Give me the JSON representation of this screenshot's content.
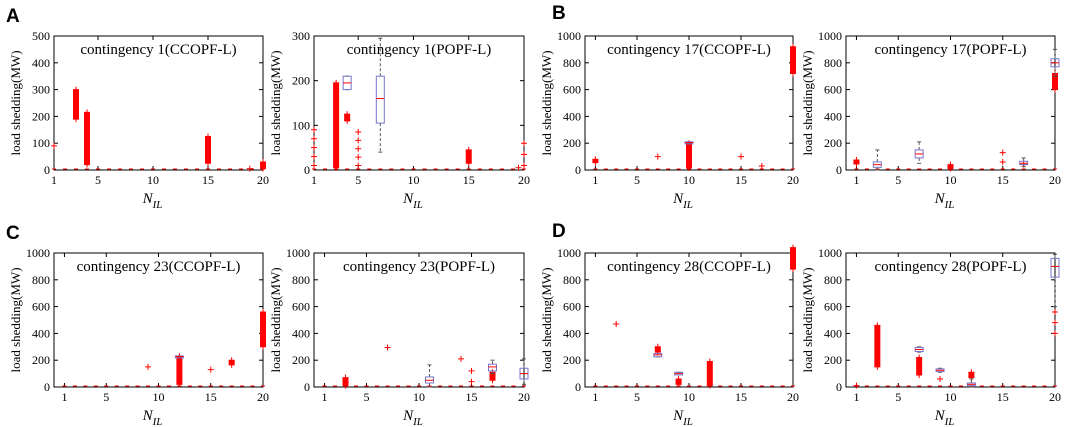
{
  "figure": {
    "y_axis_label": "load shedding(MW)",
    "x_axis_label_main": "N",
    "x_axis_label_sub": "IL",
    "colors": {
      "outlier": "#ff0000",
      "box": "#7777cc",
      "frame": "#000000",
      "baseline_marker": "#ff0000"
    }
  },
  "chart_data": [
    {
      "panel": "A",
      "type": "scatter",
      "title": "contingency 1(CCOPF-L)",
      "ylim": [
        0,
        500
      ],
      "yticks": [
        0,
        100,
        200,
        300,
        400,
        500
      ],
      "xlim": [
        1,
        20
      ],
      "xticks": [
        1,
        5,
        10,
        15,
        20
      ],
      "baseline_x": [
        1,
        2,
        3,
        4,
        5,
        6,
        7,
        8,
        9,
        10,
        11,
        12,
        13,
        14,
        15,
        16,
        17,
        18,
        19,
        20
      ],
      "clusters": [
        {
          "x": 1,
          "low": 90,
          "high": 92,
          "dense": false
        },
        {
          "x": 3,
          "low": 190,
          "high": 300,
          "dense": true
        },
        {
          "x": 4,
          "low": 20,
          "high": 215,
          "dense": true
        },
        {
          "x": 15,
          "low": 25,
          "high": 125,
          "dense": true
        },
        {
          "x": 18.8,
          "low": 5,
          "high": 5,
          "dense": false
        },
        {
          "x": 20,
          "low": 5,
          "high": 30,
          "dense": true
        }
      ],
      "boxes": []
    },
    {
      "panel": "",
      "type": "box",
      "title": "contingency 1(POPF-L)",
      "ylim": [
        0,
        300
      ],
      "yticks": [
        0,
        100,
        200,
        300
      ],
      "xlim": [
        1,
        20
      ],
      "xticks": [
        1,
        5,
        10,
        15,
        20
      ],
      "baseline_x": [
        1,
        2,
        3,
        4,
        5,
        6,
        7,
        8,
        9,
        10,
        11,
        12,
        13,
        14,
        15,
        16,
        17,
        18,
        19,
        20
      ],
      "clusters": [
        {
          "x": 1,
          "low": 10,
          "high": 90,
          "dense": false
        },
        {
          "x": 3,
          "low": 5,
          "high": 195,
          "dense": true
        },
        {
          "x": 4,
          "low": 110,
          "high": 125,
          "dense": true
        },
        {
          "x": 5,
          "low": 10,
          "high": 85,
          "dense": false
        },
        {
          "x": 15,
          "low": 15,
          "high": 45,
          "dense": true
        },
        {
          "x": 19.5,
          "low": 5,
          "high": 8,
          "dense": false
        },
        {
          "x": 20,
          "low": 10,
          "high": 60,
          "dense": false
        }
      ],
      "boxes": [
        {
          "x": 4,
          "q1": 180,
          "median": 195,
          "q3": 210,
          "whisker_low": 180,
          "whisker_high": 210
        },
        {
          "x": 7,
          "q1": 105,
          "median": 160,
          "q3": 210,
          "whisker_low": 40,
          "whisker_high": 295
        }
      ]
    },
    {
      "panel": "B",
      "type": "scatter",
      "title": "contingency 17(CCOPF-L)",
      "ylim": [
        0,
        1000
      ],
      "yticks": [
        0,
        200,
        400,
        600,
        800,
        1000
      ],
      "xlim": [
        0,
        20
      ],
      "xticks": [
        1,
        5,
        10,
        15,
        20
      ],
      "baseline_x": [
        1,
        2,
        3,
        4,
        5,
        6,
        7,
        8,
        9,
        10,
        11,
        12,
        13,
        14,
        15,
        16,
        17,
        18,
        19,
        20
      ],
      "clusters": [
        {
          "x": 1,
          "low": 55,
          "high": 80,
          "dense": true
        },
        {
          "x": 7,
          "low": 100,
          "high": 100,
          "dense": false
        },
        {
          "x": 10,
          "low": 15,
          "high": 200,
          "dense": true
        },
        {
          "x": 15,
          "low": 100,
          "high": 120,
          "dense": false
        },
        {
          "x": 17,
          "low": 30,
          "high": 35,
          "dense": false
        },
        {
          "x": 20,
          "low": 720,
          "high": 920,
          "dense": true
        }
      ],
      "boxes": [
        {
          "x": 10,
          "q1": 200,
          "median": 205,
          "q3": 210,
          "whisker_low": 200,
          "whisker_high": 210
        }
      ]
    },
    {
      "panel": "",
      "type": "box",
      "title": "contingency 17(POPF-L)",
      "ylim": [
        0,
        1000
      ],
      "yticks": [
        0,
        200,
        400,
        600,
        800,
        1000
      ],
      "xlim": [
        0,
        20
      ],
      "xticks": [
        1,
        5,
        10,
        15,
        20
      ],
      "baseline_x": [
        1,
        2,
        3,
        4,
        5,
        6,
        7,
        8,
        9,
        10,
        11,
        12,
        13,
        14,
        15,
        16,
        17,
        18,
        19,
        20
      ],
      "clusters": [
        {
          "x": 1,
          "low": 45,
          "high": 75,
          "dense": true
        },
        {
          "x": 10,
          "low": 10,
          "high": 40,
          "dense": true
        },
        {
          "x": 15,
          "low": 60,
          "high": 130,
          "dense": false
        },
        {
          "x": 17,
          "low": 40,
          "high": 55,
          "dense": false
        },
        {
          "x": 20,
          "low": 600,
          "high": 720,
          "dense": true
        }
      ],
      "boxes": [
        {
          "x": 3,
          "q1": 20,
          "median": 40,
          "q3": 60,
          "whisker_low": 0,
          "whisker_high": 150
        },
        {
          "x": 7,
          "q1": 90,
          "median": 120,
          "q3": 150,
          "whisker_low": 50,
          "whisker_high": 210
        },
        {
          "x": 17,
          "q1": 40,
          "median": 50,
          "q3": 65,
          "whisker_low": 25,
          "whisker_high": 90
        },
        {
          "x": 20,
          "q1": 770,
          "median": 800,
          "q3": 830,
          "whisker_low": 700,
          "whisker_high": 900
        }
      ]
    },
    {
      "panel": "C",
      "type": "scatter",
      "title": "contingency 23(CCOPF-L)",
      "ylim": [
        0,
        1000
      ],
      "yticks": [
        0,
        200,
        400,
        600,
        800,
        1000
      ],
      "xlim": [
        0,
        20
      ],
      "xticks": [
        1,
        5,
        10,
        15,
        20
      ],
      "baseline_x": [
        1,
        2,
        3,
        4,
        5,
        6,
        7,
        8,
        9,
        10,
        11,
        12,
        13,
        14,
        15,
        16,
        17,
        18,
        19,
        20
      ],
      "clusters": [
        {
          "x": 9,
          "low": 150,
          "high": 150,
          "dense": false
        },
        {
          "x": 12,
          "low": 20,
          "high": 230,
          "dense": true
        },
        {
          "x": 15,
          "low": 130,
          "high": 130,
          "dense": false
        },
        {
          "x": 17,
          "low": 165,
          "high": 200,
          "dense": true
        },
        {
          "x": 20,
          "low": 300,
          "high": 560,
          "dense": true
        }
      ],
      "boxes": [
        {
          "x": 12,
          "q1": 225,
          "median": 228,
          "q3": 232,
          "whisker_low": 225,
          "whisker_high": 232
        }
      ]
    },
    {
      "panel": "",
      "type": "box",
      "title": "contingency 23(POPF-L)",
      "ylim": [
        0,
        1000
      ],
      "yticks": [
        0,
        200,
        400,
        600,
        800,
        1000
      ],
      "xlim": [
        0,
        20
      ],
      "xticks": [
        1,
        5,
        10,
        15,
        20
      ],
      "baseline_x": [
        1,
        2,
        3,
        4,
        5,
        6,
        7,
        8,
        9,
        10,
        11,
        12,
        13,
        14,
        15,
        16,
        17,
        18,
        19,
        20
      ],
      "clusters": [
        {
          "x": 3,
          "low": 10,
          "high": 70,
          "dense": true
        },
        {
          "x": 7,
          "low": 295,
          "high": 295,
          "dense": false
        },
        {
          "x": 14,
          "low": 210,
          "high": 210,
          "dense": false
        },
        {
          "x": 15,
          "low": 40,
          "high": 120,
          "dense": false
        },
        {
          "x": 17,
          "low": 50,
          "high": 110,
          "dense": true
        }
      ],
      "boxes": [
        {
          "x": 11,
          "q1": 30,
          "median": 50,
          "q3": 75,
          "whisker_low": 0,
          "whisker_high": 165
        },
        {
          "x": 17,
          "q1": 120,
          "median": 150,
          "q3": 170,
          "whisker_low": 100,
          "whisker_high": 200
        },
        {
          "x": 20,
          "q1": 60,
          "median": 100,
          "q3": 140,
          "whisker_low": 20,
          "whisker_high": 210
        }
      ]
    },
    {
      "panel": "D",
      "type": "scatter",
      "title": "contingency 28(CCOPF-L)",
      "ylim": [
        0,
        1000
      ],
      "yticks": [
        0,
        200,
        400,
        600,
        800,
        1000
      ],
      "xlim": [
        0,
        20
      ],
      "xticks": [
        1,
        5,
        10,
        15,
        20
      ],
      "baseline_x": [
        1,
        2,
        3,
        4,
        5,
        6,
        7,
        8,
        9,
        10,
        11,
        12,
        13,
        14,
        15,
        16,
        17,
        18,
        19,
        20
      ],
      "clusters": [
        {
          "x": 3,
          "low": 470,
          "high": 470,
          "dense": false
        },
        {
          "x": 7,
          "low": 260,
          "high": 300,
          "dense": true
        },
        {
          "x": 9,
          "low": 20,
          "high": 60,
          "dense": true
        },
        {
          "x": 12,
          "low": 10,
          "high": 190,
          "dense": true
        },
        {
          "x": 20,
          "low": 880,
          "high": 1040,
          "dense": true
        }
      ],
      "boxes": [
        {
          "x": 7,
          "q1": 225,
          "median": 240,
          "q3": 250,
          "whisker_low": 225,
          "whisker_high": 250
        },
        {
          "x": 9,
          "q1": 90,
          "median": 100,
          "q3": 110,
          "whisker_low": 90,
          "whisker_high": 110
        }
      ]
    },
    {
      "panel": "",
      "type": "box",
      "title": "contingency 28(POPF-L)",
      "ylim": [
        0,
        1000
      ],
      "yticks": [
        0,
        200,
        400,
        600,
        800,
        1000
      ],
      "xlim": [
        0,
        20
      ],
      "xticks": [
        1,
        5,
        10,
        15,
        20
      ],
      "baseline_x": [
        1,
        2,
        3,
        4,
        5,
        6,
        7,
        8,
        9,
        10,
        11,
        12,
        13,
        14,
        15,
        16,
        17,
        18,
        19,
        20
      ],
      "clusters": [
        {
          "x": 1,
          "low": 10,
          "high": 30,
          "dense": false
        },
        {
          "x": 3,
          "low": 150,
          "high": 460,
          "dense": true
        },
        {
          "x": 7,
          "low": 90,
          "high": 220,
          "dense": true
        },
        {
          "x": 9,
          "low": 60,
          "high": 90,
          "dense": false
        },
        {
          "x": 12,
          "low": 70,
          "high": 110,
          "dense": true
        },
        {
          "x": 20,
          "low": 400,
          "high": 560,
          "dense": false
        }
      ],
      "boxes": [
        {
          "x": 7,
          "q1": 265,
          "median": 280,
          "q3": 295,
          "whisker_low": 260,
          "whisker_high": 300
        },
        {
          "x": 9,
          "q1": 115,
          "median": 125,
          "q3": 135,
          "whisker_low": 110,
          "whisker_high": 140
        },
        {
          "x": 12,
          "q1": 10,
          "median": 20,
          "q3": 30,
          "whisker_low": 0,
          "whisker_high": 60
        },
        {
          "x": 20,
          "q1": 820,
          "median": 900,
          "q3": 960,
          "whisker_low": 600,
          "whisker_high": 990
        }
      ]
    }
  ]
}
